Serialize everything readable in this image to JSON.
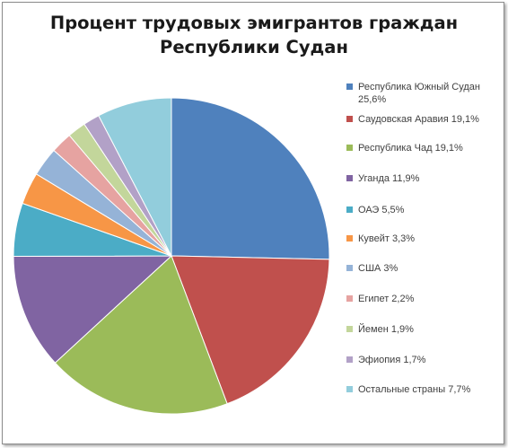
{
  "chart_data": {
    "type": "pie",
    "title": "Процент трудовых эмигрантов граждан Республики Судан",
    "title_lines": [
      "Процент трудовых эмигрантов граждан",
      "Республики Судан"
    ],
    "legend_position": "right",
    "slices": [
      {
        "label": "Республика Южный Судан 25,6%",
        "value": 25.6,
        "color": "#4f81bd"
      },
      {
        "label": "Саудовская Аравия 19,1%",
        "value": 19.1,
        "color": "#c0504d"
      },
      {
        "label": "Республика Чад 19,1%",
        "value": 19.1,
        "color": "#9bbb59"
      },
      {
        "label": "Уганда 11,9%",
        "value": 11.9,
        "color": "#8064a2"
      },
      {
        "label": "ОАЭ 5,5%",
        "value": 5.5,
        "color": "#4bacc6"
      },
      {
        "label": "Кувейт 3,3%",
        "value": 3.3,
        "color": "#f79646"
      },
      {
        "label": "США 3%",
        "value": 3.0,
        "color": "#95b3d7"
      },
      {
        "label": "Египет 2,2%",
        "value": 2.2,
        "color": "#e6a3a1"
      },
      {
        "label": "Йемен 1,9%",
        "value": 1.9,
        "color": "#c3d69b"
      },
      {
        "label": "Эфиопия 1,7%",
        "value": 1.7,
        "color": "#b2a1c7"
      },
      {
        "label": "Остальные страны 7,7%",
        "value": 7.7,
        "color": "#92cddc"
      }
    ]
  }
}
